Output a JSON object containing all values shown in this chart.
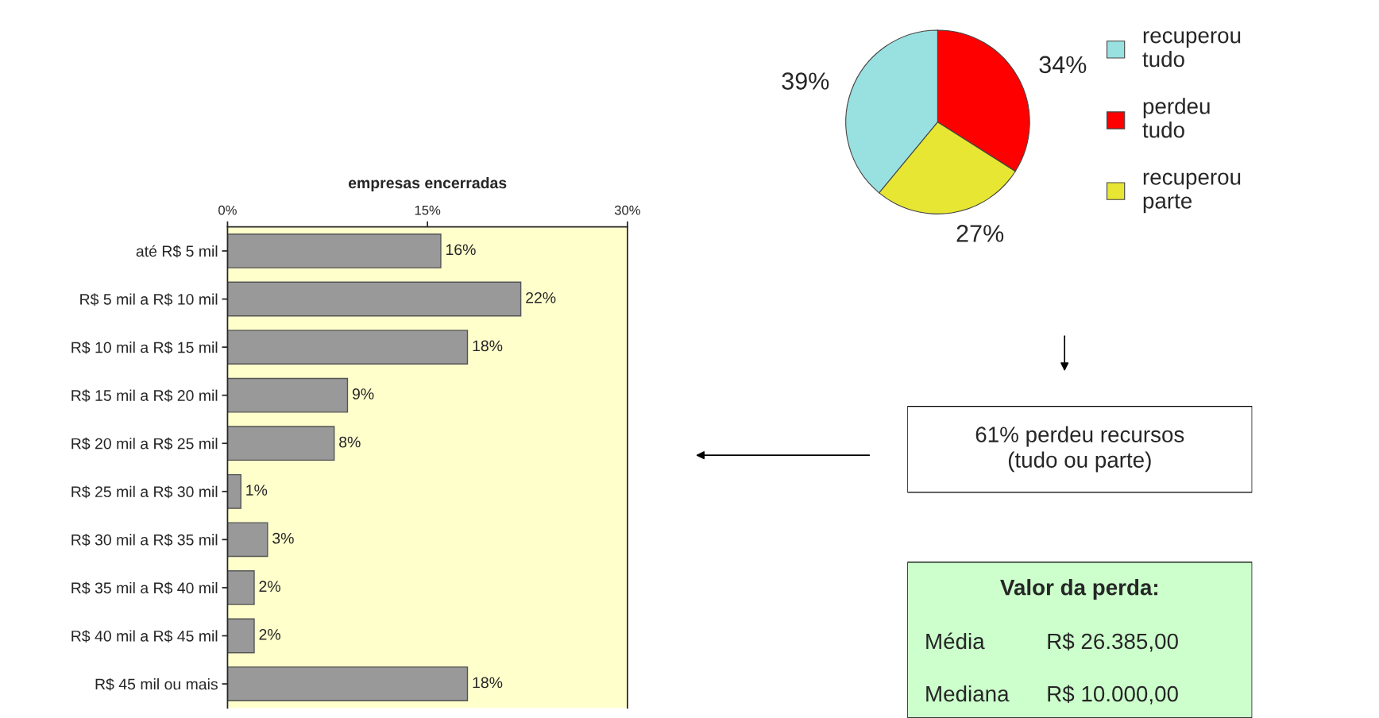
{
  "chart_data": [
    {
      "type": "bar",
      "orientation": "horizontal",
      "title": "empresas encerradas",
      "categories": [
        "até R$ 5 mil",
        "R$ 5 mil a R$ 10 mil",
        "R$ 10 mil a R$ 15 mil",
        "R$ 15 mil a R$ 20 mil",
        "R$ 20 mil a R$ 25 mil",
        "R$ 25 mil a R$ 30 mil",
        "R$ 30 mil a R$ 35 mil",
        "R$ 35 mil a R$ 40 mil",
        "R$ 40 mil a R$ 45 mil",
        "R$ 45 mil ou mais"
      ],
      "values": [
        16,
        22,
        18,
        9,
        8,
        1,
        3,
        2,
        2,
        18
      ],
      "value_labels": [
        "16%",
        "22%",
        "18%",
        "9%",
        "8%",
        "1%",
        "3%",
        "2%",
        "2%",
        "18%"
      ],
      "color": "#999999",
      "xlim": [
        0,
        30
      ],
      "xticks": [
        {
          "value": 0,
          "label": "0%"
        },
        {
          "value": 15,
          "label": "15%"
        },
        {
          "value": 30,
          "label": "30%"
        }
      ]
    },
    {
      "type": "pie",
      "categories": [
        "recuperou tudo",
        "perdeu tudo",
        "recuperou parte"
      ],
      "values": [
        39,
        34,
        27
      ],
      "value_labels": [
        "39%",
        "34%",
        "27%"
      ],
      "colors": [
        "#99e0e0",
        "#ff0000",
        "#e6e633"
      ],
      "legend": "right"
    },
    {
      "type": "other",
      "title": "Valor da perda:",
      "annotations": [
        "61% perdeu recursos\n(tudo ou parte)",
        "Média",
        "R$ 26.385,00",
        "Mediana",
        "R$ 10.000,00"
      ]
    }
  ]
}
